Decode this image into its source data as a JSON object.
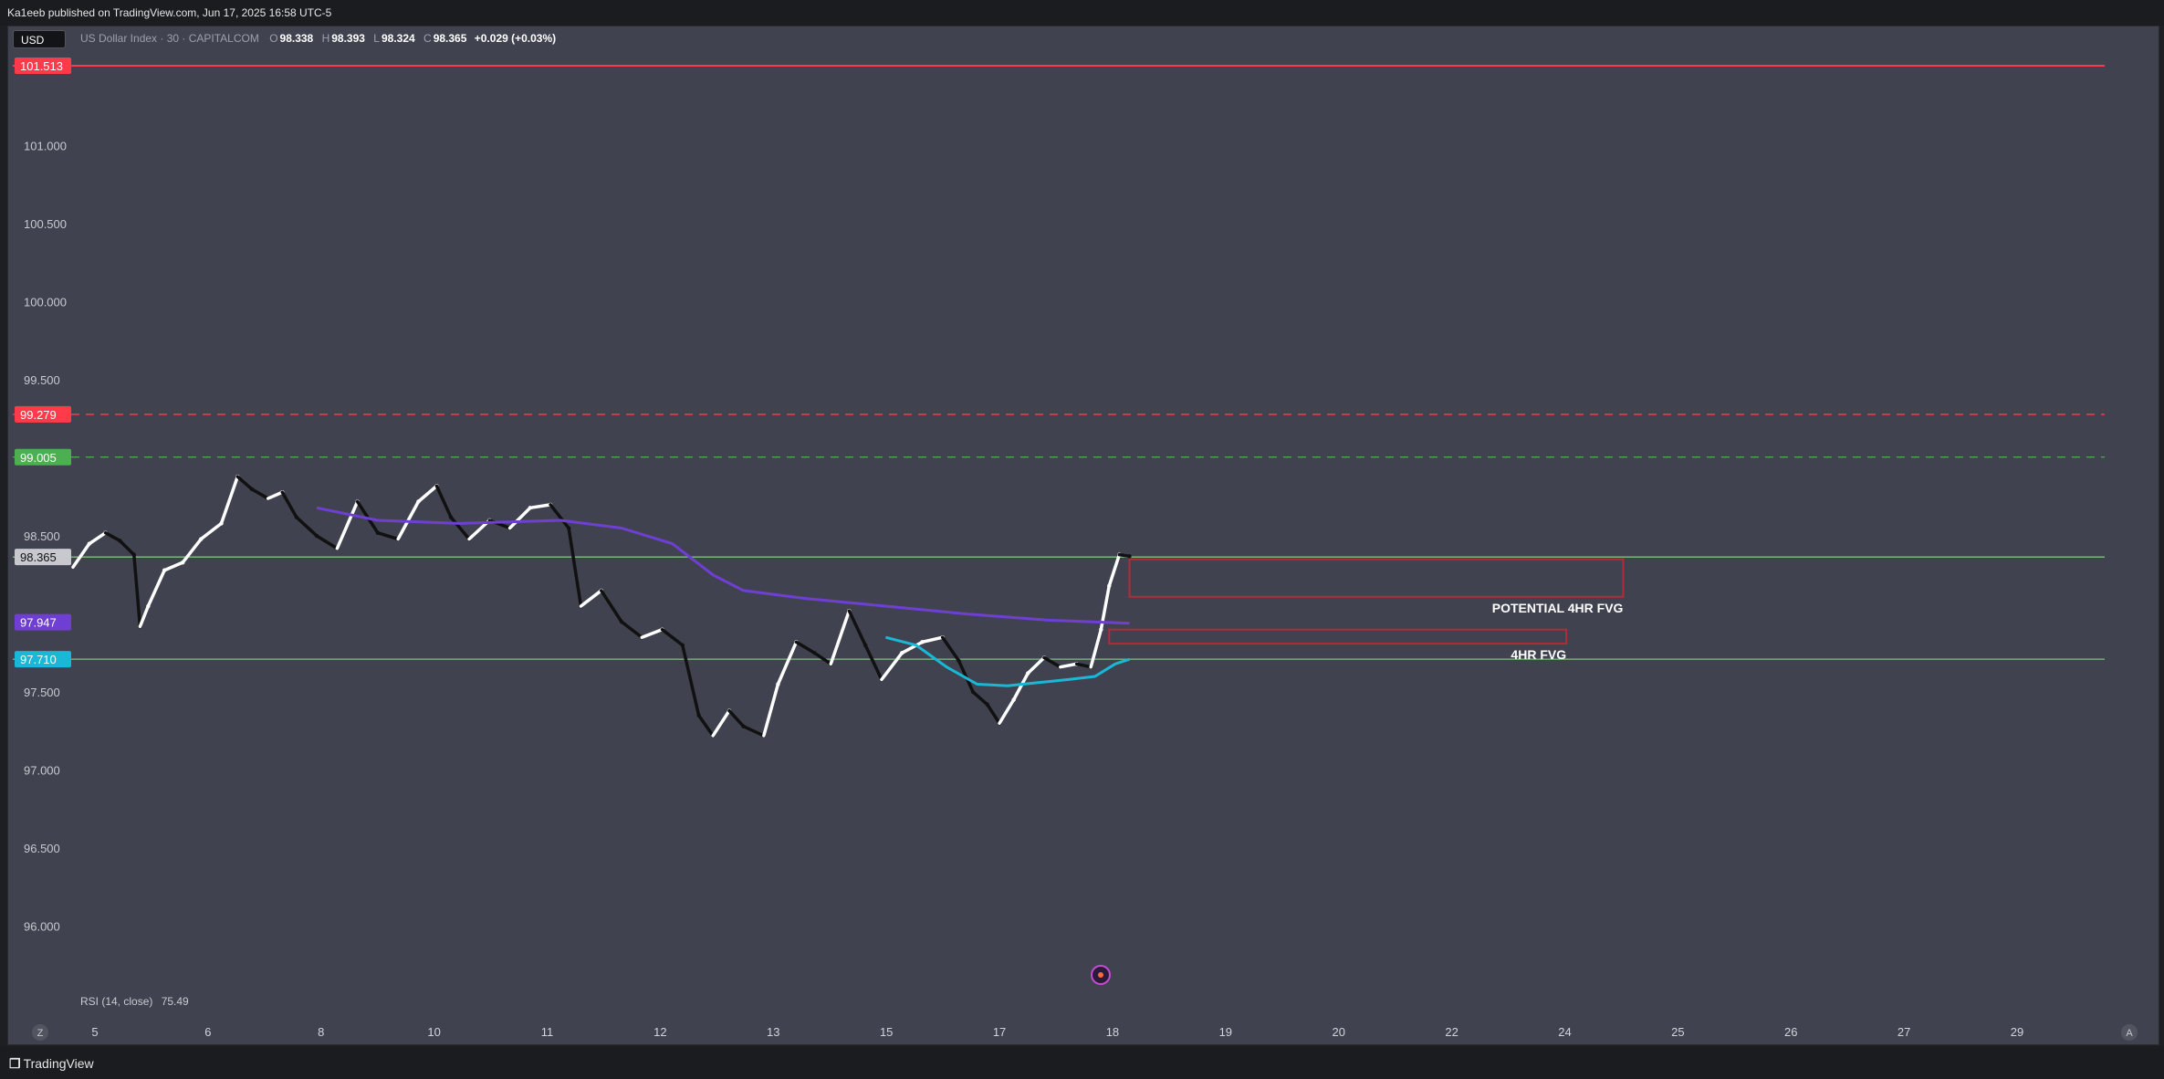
{
  "header": {
    "publish_line": "Ka1eeb published on TradingView.com, Jun 17, 2025 16:58 UTC-5"
  },
  "toolbar": {
    "currency": "USD"
  },
  "legend": {
    "symbol": "US Dollar Index · 30 · CAPITALCOM",
    "open_label": "O",
    "open": "98.338",
    "high_label": "H",
    "high": "98.393",
    "low_label": "L",
    "low": "98.324",
    "close_label": "C",
    "close": "98.365",
    "change": "+0.029 (+0.03%)"
  },
  "rsi": {
    "label": "RSI (14, close)",
    "value": "75.49"
  },
  "footer": {
    "brand": "TradingView",
    "logo_icon": "tradingview-logo-icon"
  },
  "colors": {
    "background": "#40434f",
    "candle_up": "#ffffff",
    "candle_down": "#111111",
    "resistance_red": "#ff3b4b",
    "support_green": "#4caf50",
    "ma_slow": "#6f3fd3",
    "ma_fast": "#19b8d6",
    "fvg_box": "#b32a3a",
    "level_green": "#7ec17e"
  },
  "chart_data": {
    "type": "line",
    "title": "US Dollar Index · 30 · CAPITALCOM",
    "ylim": [
      95.5,
      101.7
    ],
    "y_ticks": [
      "101.000",
      "100.500",
      "100.000",
      "99.500",
      "98.500",
      "97.500",
      "97.000",
      "96.500",
      "96.000"
    ],
    "x_ticks": [
      "5",
      "6",
      "8",
      "10",
      "11",
      "12",
      "13",
      "15",
      "17",
      "18",
      "19",
      "20",
      "22",
      "24",
      "25",
      "26",
      "27",
      "29"
    ],
    "xlim": [
      0,
      100
    ],
    "price_series": [
      {
        "x": 0.0,
        "y": 98.3
      },
      {
        "x": 0.8,
        "y": 98.45
      },
      {
        "x": 1.6,
        "y": 98.52
      },
      {
        "x": 2.3,
        "y": 98.47
      },
      {
        "x": 3.0,
        "y": 98.38
      },
      {
        "x": 3.3,
        "y": 97.92
      },
      {
        "x": 3.7,
        "y": 98.05
      },
      {
        "x": 4.5,
        "y": 98.28
      },
      {
        "x": 5.4,
        "y": 98.33
      },
      {
        "x": 6.3,
        "y": 98.48
      },
      {
        "x": 7.3,
        "y": 98.58
      },
      {
        "x": 8.1,
        "y": 98.88
      },
      {
        "x": 8.8,
        "y": 98.8
      },
      {
        "x": 9.6,
        "y": 98.74
      },
      {
        "x": 10.3,
        "y": 98.78
      },
      {
        "x": 11.0,
        "y": 98.62
      },
      {
        "x": 12.0,
        "y": 98.5
      },
      {
        "x": 13.0,
        "y": 98.42
      },
      {
        "x": 14.0,
        "y": 98.72
      },
      {
        "x": 15.0,
        "y": 98.52
      },
      {
        "x": 16.0,
        "y": 98.48
      },
      {
        "x": 17.0,
        "y": 98.72
      },
      {
        "x": 17.9,
        "y": 98.82
      },
      {
        "x": 18.6,
        "y": 98.62
      },
      {
        "x": 19.5,
        "y": 98.48
      },
      {
        "x": 20.5,
        "y": 98.6
      },
      {
        "x": 21.5,
        "y": 98.55
      },
      {
        "x": 22.5,
        "y": 98.68
      },
      {
        "x": 23.5,
        "y": 98.7
      },
      {
        "x": 24.4,
        "y": 98.55
      },
      {
        "x": 25.0,
        "y": 98.05
      },
      {
        "x": 26.0,
        "y": 98.15
      },
      {
        "x": 27.0,
        "y": 97.95
      },
      {
        "x": 28.0,
        "y": 97.85
      },
      {
        "x": 29.0,
        "y": 97.9
      },
      {
        "x": 30.0,
        "y": 97.8
      },
      {
        "x": 30.8,
        "y": 97.35
      },
      {
        "x": 31.5,
        "y": 97.22
      },
      {
        "x": 32.3,
        "y": 97.38
      },
      {
        "x": 33.0,
        "y": 97.28
      },
      {
        "x": 34.0,
        "y": 97.22
      },
      {
        "x": 34.7,
        "y": 97.55
      },
      {
        "x": 35.6,
        "y": 97.82
      },
      {
        "x": 36.5,
        "y": 97.75
      },
      {
        "x": 37.3,
        "y": 97.68
      },
      {
        "x": 38.2,
        "y": 98.02
      },
      {
        "x": 39.0,
        "y": 97.8
      },
      {
        "x": 39.8,
        "y": 97.58
      },
      {
        "x": 40.8,
        "y": 97.75
      },
      {
        "x": 41.8,
        "y": 97.82
      },
      {
        "x": 42.8,
        "y": 97.85
      },
      {
        "x": 43.6,
        "y": 97.7
      },
      {
        "x": 44.3,
        "y": 97.5
      },
      {
        "x": 45.0,
        "y": 97.42
      },
      {
        "x": 45.6,
        "y": 97.3
      },
      {
        "x": 46.3,
        "y": 97.45
      },
      {
        "x": 47.0,
        "y": 97.62
      },
      {
        "x": 47.8,
        "y": 97.72
      },
      {
        "x": 48.6,
        "y": 97.66
      },
      {
        "x": 49.4,
        "y": 97.68
      },
      {
        "x": 50.1,
        "y": 97.66
      },
      {
        "x": 50.6,
        "y": 97.9
      },
      {
        "x": 51.0,
        "y": 98.18
      },
      {
        "x": 51.5,
        "y": 98.38
      },
      {
        "x": 52.0,
        "y": 98.37
      }
    ],
    "series": [
      {
        "values": [
          {
            "x": 12.0,
            "y": 98.68
          },
          {
            "x": 15.0,
            "y": 98.6
          },
          {
            "x": 19.0,
            "y": 98.58
          },
          {
            "x": 24.0,
            "y": 98.6
          },
          {
            "x": 27.0,
            "y": 98.55
          },
          {
            "x": 29.5,
            "y": 98.45
          },
          {
            "x": 31.5,
            "y": 98.25
          },
          {
            "x": 33.0,
            "y": 98.15
          },
          {
            "x": 36.0,
            "y": 98.1
          },
          {
            "x": 40.0,
            "y": 98.05
          },
          {
            "x": 44.0,
            "y": 98.0
          },
          {
            "x": 48.0,
            "y": 97.96
          },
          {
            "x": 52.0,
            "y": 97.94
          }
        ]
      },
      {
        "values": [
          {
            "x": 40.0,
            "y": 97.85
          },
          {
            "x": 41.5,
            "y": 97.8
          },
          {
            "x": 43.0,
            "y": 97.66
          },
          {
            "x": 44.5,
            "y": 97.55
          },
          {
            "x": 46.0,
            "y": 97.54
          },
          {
            "x": 47.5,
            "y": 97.56
          },
          {
            "x": 49.0,
            "y": 97.58
          },
          {
            "x": 50.3,
            "y": 97.6
          },
          {
            "x": 51.3,
            "y": 97.68
          },
          {
            "x": 52.0,
            "y": 97.71
          }
        ]
      }
    ],
    "levels": [
      {
        "price": 101.513,
        "label": "101.513",
        "style": "solid",
        "color": "#ff3b4b"
      },
      {
        "price": 99.279,
        "label": "99.279",
        "style": "dashed",
        "color": "#ff3b4b"
      },
      {
        "price": 99.005,
        "label": "99.005",
        "style": "dashed",
        "color": "#4caf50"
      },
      {
        "price": 98.365,
        "label": "98.365",
        "style": "solid",
        "color": "#7ec17e"
      },
      {
        "price": 97.947,
        "label": "97.947",
        "style": "none",
        "color": "#6f3fd3"
      },
      {
        "price": 97.71,
        "label": "97.710",
        "style": "solid",
        "color": "#7ec17e"
      }
    ],
    "zones": [
      {
        "label": "POTENTIAL 4HR FVG",
        "x0": 52.0,
        "x1": 76.3,
        "y_top": 98.35,
        "y_bottom": 98.11
      },
      {
        "label": "4HR FVG",
        "x0": 51.0,
        "x1": 73.5,
        "y_top": 97.9,
        "y_bottom": 97.81
      }
    ],
    "grid": false,
    "legend_position": "top-left",
    "axis_buttons": [
      "Z",
      "A"
    ]
  }
}
